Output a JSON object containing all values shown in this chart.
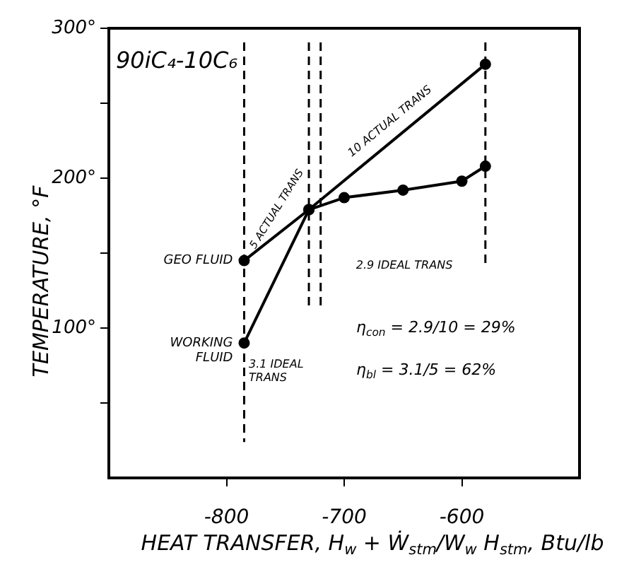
{
  "chart_data": {
    "type": "line",
    "xlabel": "HEAT TRANSFER, H$_{w}$ + Ẇ$_{stm}$/W$_{w}$ H$_{stm}$, Btu/lb",
    "ylabel": "TEMPERATURE, °F",
    "xlim": [
      -900,
      -500
    ],
    "xticks": [
      -800,
      -700,
      -600
    ],
    "ylim": [
      0,
      300
    ],
    "yticks": [
      {
        "value": 50,
        "label": null
      },
      {
        "value": 100,
        "label": "100°"
      },
      {
        "value": 150,
        "label": null
      },
      {
        "value": 200,
        "label": "200°"
      },
      {
        "value": 250,
        "label": null
      },
      {
        "value": 300,
        "label": "300°"
      }
    ],
    "series": [
      {
        "name": "GEO FLUID",
        "color": "#000000",
        "x": [
          -785,
          -730,
          -580
        ],
        "values": [
          145,
          179,
          276
        ]
      },
      {
        "name": "WORKING FLUID",
        "color": "#000000",
        "x": [
          -785,
          -730,
          -700,
          -650,
          -600,
          -580
        ],
        "values": [
          90,
          179,
          187,
          192,
          198,
          208
        ]
      }
    ],
    "ref_lines": [
      {
        "axis": "x",
        "value": -785,
        "line_style": "dashed"
      },
      {
        "axis": "x",
        "value": -730,
        "line_style": "dashed"
      },
      {
        "axis": "x",
        "value": -720,
        "line_style": "dashed"
      },
      {
        "axis": "x",
        "value": -580,
        "line_style": "dashed"
      }
    ],
    "annotations": [
      "90iC₄-10C₆",
      "5 ACTUAL TRANS",
      "10 ACTUAL TRANS",
      "2.9 IDEAL TRANS",
      "3.1 IDEAL TRANS",
      "η$_{con}$ = 2.9/10 = 29%",
      "η$_{bl}$ = 3.1/5 = 62%"
    ],
    "grid": false,
    "legend": false,
    "marker": "circle",
    "line_style": "solid"
  }
}
